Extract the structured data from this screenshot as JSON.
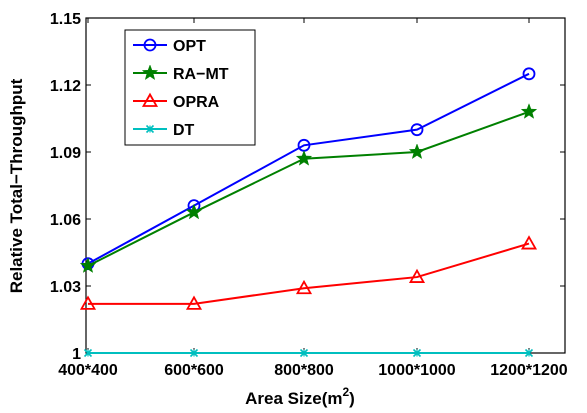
{
  "chart_data": {
    "type": "line",
    "title": "",
    "xlabel": "Area Size(m",
    "xlabel_sup": "2",
    "xlabel_close": ")",
    "ylabel": "Relative Total−Throughput",
    "categories": [
      "400*400",
      "600*600",
      "800*800",
      "1000*1000",
      "1200*1200"
    ],
    "ylim": [
      1.0,
      1.15
    ],
    "yticks": [
      "1",
      "1.03",
      "1.06",
      "1.09",
      "1.12",
      "1.15"
    ],
    "ytick_values": [
      1.0,
      1.03,
      1.06,
      1.09,
      1.12,
      1.15
    ],
    "grid": false,
    "legend_position": "top-left",
    "series": [
      {
        "name": "OPT",
        "values": [
          1.04,
          1.066,
          1.093,
          1.1,
          1.125
        ],
        "color": "#0000ff",
        "marker": "circle"
      },
      {
        "name": "RA−MT",
        "values": [
          1.039,
          1.063,
          1.087,
          1.09,
          1.108
        ],
        "color": "#008000",
        "marker": "star"
      },
      {
        "name": "OPRA",
        "values": [
          1.022,
          1.022,
          1.029,
          1.034,
          1.049
        ],
        "color": "#ff0000",
        "marker": "triangle"
      },
      {
        "name": "DT",
        "values": [
          1.0,
          1.0,
          1.0,
          1.0,
          1.0
        ],
        "color": "#00bfbf",
        "marker": "x"
      }
    ]
  }
}
